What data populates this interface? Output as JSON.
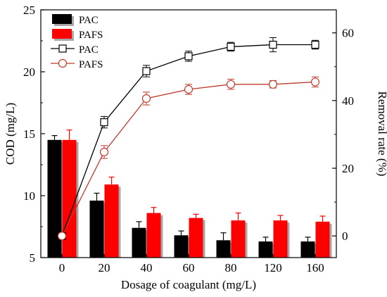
{
  "chart_data": {
    "type": "bar",
    "xlabel": "Dosage of coagulant (mg/L)",
    "ylabel_left": "COD (mg/L)",
    "ylabel_right": "Removal rate (%)",
    "categories": [
      "0",
      "20",
      "40",
      "60",
      "80",
      "120",
      "160"
    ],
    "ylim_left": [
      5,
      25
    ],
    "yticks_left": [
      5,
      10,
      15,
      20,
      25
    ],
    "ylim_right": [
      -6.4,
      66.8
    ],
    "yticks_right": [
      0,
      20,
      40,
      60
    ],
    "grid": false,
    "legend_position": "top-left",
    "bar_series": [
      {
        "name": "PAC",
        "color": "#000000",
        "values": [
          14.5,
          9.6,
          7.4,
          6.8,
          6.4,
          6.3,
          6.3
        ],
        "errors": [
          0.35,
          0.6,
          0.5,
          0.35,
          0.6,
          0.35,
          0.35
        ]
      },
      {
        "name": "PAFS",
        "color": "#ff0000",
        "values": [
          14.5,
          10.9,
          8.6,
          8.2,
          8.0,
          8.0,
          7.9
        ],
        "errors": [
          0.8,
          0.6,
          0.45,
          0.3,
          0.6,
          0.4,
          0.45
        ]
      }
    ],
    "line_series": [
      {
        "name": "PAC",
        "color": "#000000",
        "marker": "square",
        "values": [
          0,
          33.6,
          48.7,
          53.1,
          55.9,
          56.5,
          56.5
        ],
        "errors": [
          0,
          1.7,
          1.7,
          1.5,
          1.3,
          2.1,
          1.3
        ]
      },
      {
        "name": "PAFS",
        "color": "#c0392b",
        "marker": "circle",
        "values": [
          0,
          24.8,
          40.6,
          43.3,
          44.8,
          44.8,
          45.5
        ],
        "errors": [
          0,
          1.9,
          1.9,
          1.5,
          1.5,
          1.1,
          1.5
        ]
      }
    ]
  }
}
